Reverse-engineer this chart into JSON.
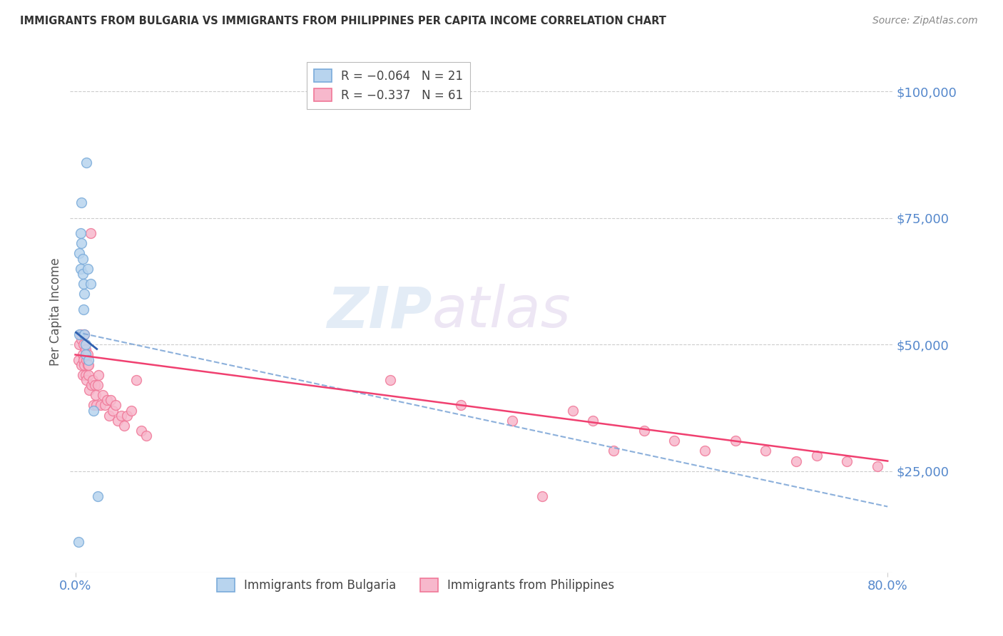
{
  "title": "IMMIGRANTS FROM BULGARIA VS IMMIGRANTS FROM PHILIPPINES PER CAPITA INCOME CORRELATION CHART",
  "source": "Source: ZipAtlas.com",
  "ylabel": "Per Capita Income",
  "ytick_labels": [
    "$25,000",
    "$50,000",
    "$75,000",
    "$100,000"
  ],
  "ytick_values": [
    25000,
    50000,
    75000,
    100000
  ],
  "ylim": [
    5000,
    108000
  ],
  "xlim": [
    -0.005,
    0.805
  ],
  "watermark_line1": "ZIP",
  "watermark_line2": "atlas",
  "legend_r1": "R = −0.064",
  "legend_n1": "N = 21",
  "legend_r2": "R = −0.337",
  "legend_n2": "N = 61",
  "bulgaria_fill": "#b8d4ee",
  "bulgaria_edge": "#7aabda",
  "philippines_fill": "#f7b8cc",
  "philippines_edge": "#f07898",
  "trendline_bulgaria_color": "#3060b0",
  "trendline_philippines_color": "#f04070",
  "trendline_dashed_color": "#80a8d8",
  "bg_color": "#ffffff",
  "grid_color": "#cccccc",
  "axis_color": "#5588cc",
  "title_color": "#333333",
  "bulgaria_x": [
    0.003,
    0.004,
    0.004,
    0.005,
    0.005,
    0.006,
    0.006,
    0.007,
    0.007,
    0.008,
    0.008,
    0.009,
    0.009,
    0.01,
    0.01,
    0.011,
    0.012,
    0.013,
    0.015,
    0.018,
    0.022
  ],
  "bulgaria_y": [
    11000,
    68000,
    52000,
    65000,
    72000,
    70000,
    78000,
    67000,
    64000,
    62000,
    57000,
    60000,
    52000,
    50000,
    48000,
    86000,
    65000,
    47000,
    62000,
    37000,
    20000
  ],
  "philippines_x": [
    0.003,
    0.004,
    0.005,
    0.006,
    0.006,
    0.007,
    0.007,
    0.008,
    0.008,
    0.009,
    0.009,
    0.01,
    0.01,
    0.011,
    0.011,
    0.012,
    0.012,
    0.013,
    0.013,
    0.014,
    0.015,
    0.016,
    0.017,
    0.018,
    0.019,
    0.02,
    0.021,
    0.022,
    0.023,
    0.025,
    0.027,
    0.029,
    0.031,
    0.033,
    0.035,
    0.037,
    0.04,
    0.042,
    0.045,
    0.048,
    0.051,
    0.055,
    0.06,
    0.065,
    0.07,
    0.31,
    0.38,
    0.43,
    0.46,
    0.49,
    0.51,
    0.53,
    0.56,
    0.59,
    0.62,
    0.65,
    0.68,
    0.71,
    0.73,
    0.76,
    0.79
  ],
  "philippines_y": [
    47000,
    50000,
    52000,
    46000,
    51000,
    48000,
    44000,
    50000,
    47000,
    46000,
    52000,
    44000,
    49000,
    47000,
    43000,
    46000,
    48000,
    44000,
    46000,
    41000,
    72000,
    42000,
    43000,
    38000,
    42000,
    40000,
    38000,
    42000,
    44000,
    38000,
    40000,
    38000,
    39000,
    36000,
    39000,
    37000,
    38000,
    35000,
    36000,
    34000,
    36000,
    37000,
    43000,
    33000,
    32000,
    43000,
    38000,
    35000,
    20000,
    37000,
    35000,
    29000,
    33000,
    31000,
    29000,
    31000,
    29000,
    27000,
    28000,
    27000,
    26000
  ]
}
